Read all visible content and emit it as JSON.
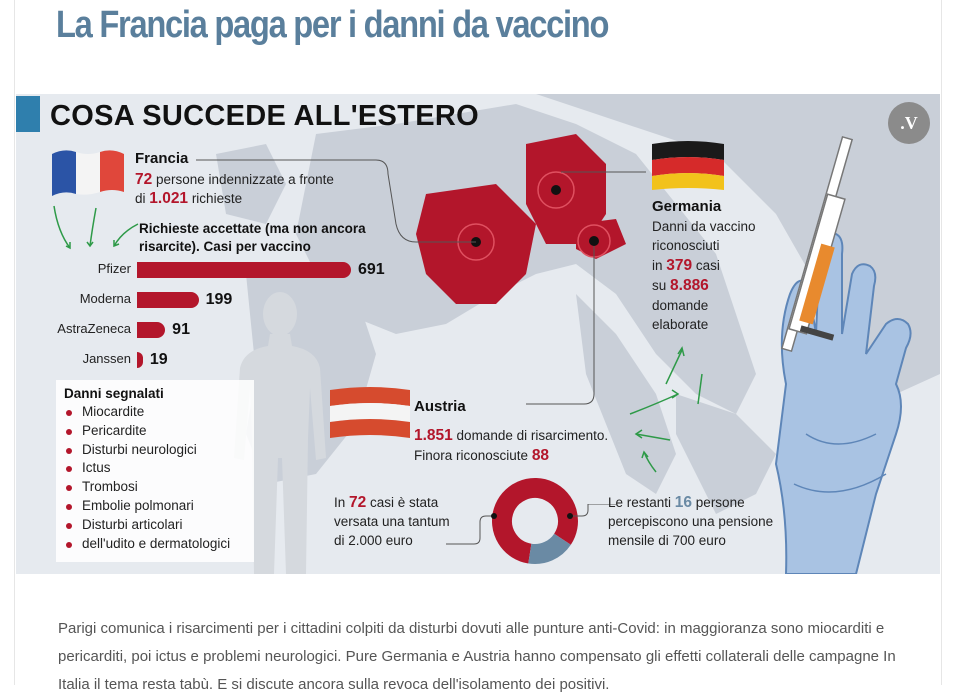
{
  "headline": "La Francia paga per i danni da vaccino",
  "section_title": "COSA SUCCEDE ALL'ESTERO",
  "logo_text": ".V",
  "colors": {
    "accent_blue": "#2f7fad",
    "headline_blue": "#5a7f9c",
    "vaccine_red": "#b3162b",
    "map_gray": "#c9cfd8",
    "glove_blue": "#a9c3e3"
  },
  "icons": [
    "france-flag-icon",
    "germany-flag-icon",
    "austria-flag-icon",
    "human-silhouette-icon",
    "syringe-icon",
    "gloved-hand-icon",
    "green-arrow-icon"
  ],
  "france": {
    "name": "Francia",
    "line1_num": "72",
    "line1_text": " persone indennizzate a fronte",
    "line2_pre": "di ",
    "line2_num": "1.021",
    "line2_text": " richieste",
    "subtitle_line1": "Richieste accettate (ma non ancora",
    "subtitle_line2": "risarcite). Casi per vaccino"
  },
  "damages": {
    "title": "Danni segnalati",
    "items": [
      "Miocardite",
      "Pericardite",
      "Disturbi neurologici",
      "Ictus",
      "Trombosi",
      "Embolie polmonari",
      "Disturbi articolari",
      "dell'udito e dermatologici"
    ]
  },
  "germany": {
    "name": "Germania",
    "lines": [
      "Danni da vaccino",
      "riconosciuti",
      "in ",
      "379",
      " casi",
      "su ",
      "8.886",
      "domande",
      "elaborate"
    ]
  },
  "austria": {
    "name": "Austria",
    "line1_num": "1.851",
    "line1_text": " domande di risarcimento.",
    "line2_text": "Finora riconosciute ",
    "line2_num": "88",
    "left_pre": "In ",
    "left_num": "72",
    "left_text1": " casi è stata",
    "left_text2": "versata una tantum",
    "left_text3": "di 2.000 euro",
    "right_pre": "Le restanti ",
    "right_num": "16",
    "right_text1": " persone",
    "right_text2": "percepiscono una pensione",
    "right_text3": "mensile di 700 euro"
  },
  "caption": "Parigi comunica i risarcimenti per i cittadini colpiti da disturbi dovuti alle punture anti-Covid: in maggioranza sono miocarditi e pericarditi, poi ictus e problemi neurologici. Pure Germania e Austria hanno compensato gli effetti collaterali delle campagne In Italia il tema resta tabù. E si discute ancora sulla revoca dell'isolamento dei positivi.",
  "chart_data": [
    {
      "type": "bar",
      "title": "Richieste accettate (ma non ancora risarcite). Casi per vaccino",
      "categories": [
        "Pfizer",
        "Moderna",
        "AstraZeneca",
        "Janssen"
      ],
      "values": [
        691,
        199,
        91,
        19
      ],
      "xlim": [
        0,
        691
      ]
    },
    {
      "type": "pie",
      "labels": [
        "In 72 casi è stata versata una tantum di 2.000 euro",
        "Le restanti 16 persone percepiscono una pensione mensile di 700 euro"
      ],
      "values": [
        72,
        16
      ],
      "colors": [
        "#b3162b",
        "#6a8aa4"
      ]
    }
  ]
}
